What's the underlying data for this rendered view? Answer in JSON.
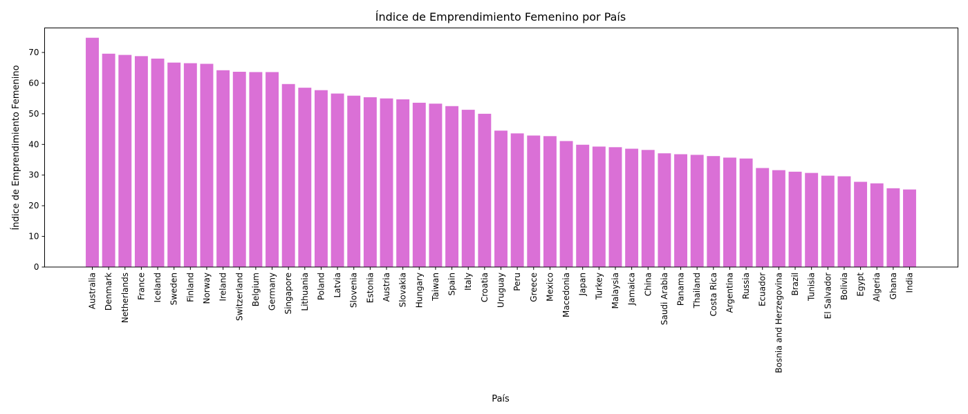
{
  "chart_data": {
    "type": "bar",
    "title": "Índice de Emprendimiento Femenino por País",
    "xlabel": "País",
    "ylabel": "Índice de Emprendimiento Femenino",
    "ylim": [
      0,
      78
    ],
    "yticks": [
      0,
      10,
      20,
      30,
      40,
      50,
      60,
      70
    ],
    "bar_color": "#DA70D6",
    "grid": false,
    "categories": [
      "Australia",
      "Denmark",
      "Netherlands",
      "France",
      "Iceland",
      "Sweden",
      "Finland",
      "Norway",
      "Ireland",
      "Switzerland",
      "Belgium",
      "Germany",
      "Singapore",
      "Lithuania",
      "Poland",
      "Latvia",
      "Slovenia",
      "Estonia",
      "Austria",
      "Slovakia",
      "Hungary",
      "Taiwan",
      "Spain",
      "Italy",
      "Croatia",
      "Uruguay",
      "Peru",
      "Greece",
      "Mexico",
      "Macedonia",
      "Japan",
      "Turkey",
      "Malaysia",
      "Jamaica",
      "China",
      "Saudi Arabia",
      "Panama",
      "Thailand",
      "Costa Rica",
      "Argentina",
      "Russia",
      "Ecuador",
      "Bosnia and Herzegovina",
      "Brazil",
      "Tunisia",
      "El Salvador",
      "Bolivia",
      "Egypt",
      "Algeria",
      "Ghana",
      "India"
    ],
    "values": [
      74.8,
      69.6,
      69.2,
      68.8,
      68.0,
      66.7,
      66.5,
      66.3,
      64.2,
      63.7,
      63.6,
      63.6,
      59.7,
      58.5,
      57.7,
      56.6,
      55.9,
      55.4,
      55.0,
      54.7,
      53.6,
      53.3,
      52.5,
      51.3,
      50.0,
      44.5,
      43.6,
      42.9,
      42.7,
      41.1,
      39.9,
      39.3,
      39.1,
      38.6,
      38.2,
      37.1,
      36.8,
      36.6,
      36.2,
      35.7,
      35.4,
      32.3,
      31.6,
      31.1,
      30.7,
      29.8,
      29.6,
      27.8,
      27.3,
      25.7,
      25.3
    ]
  }
}
